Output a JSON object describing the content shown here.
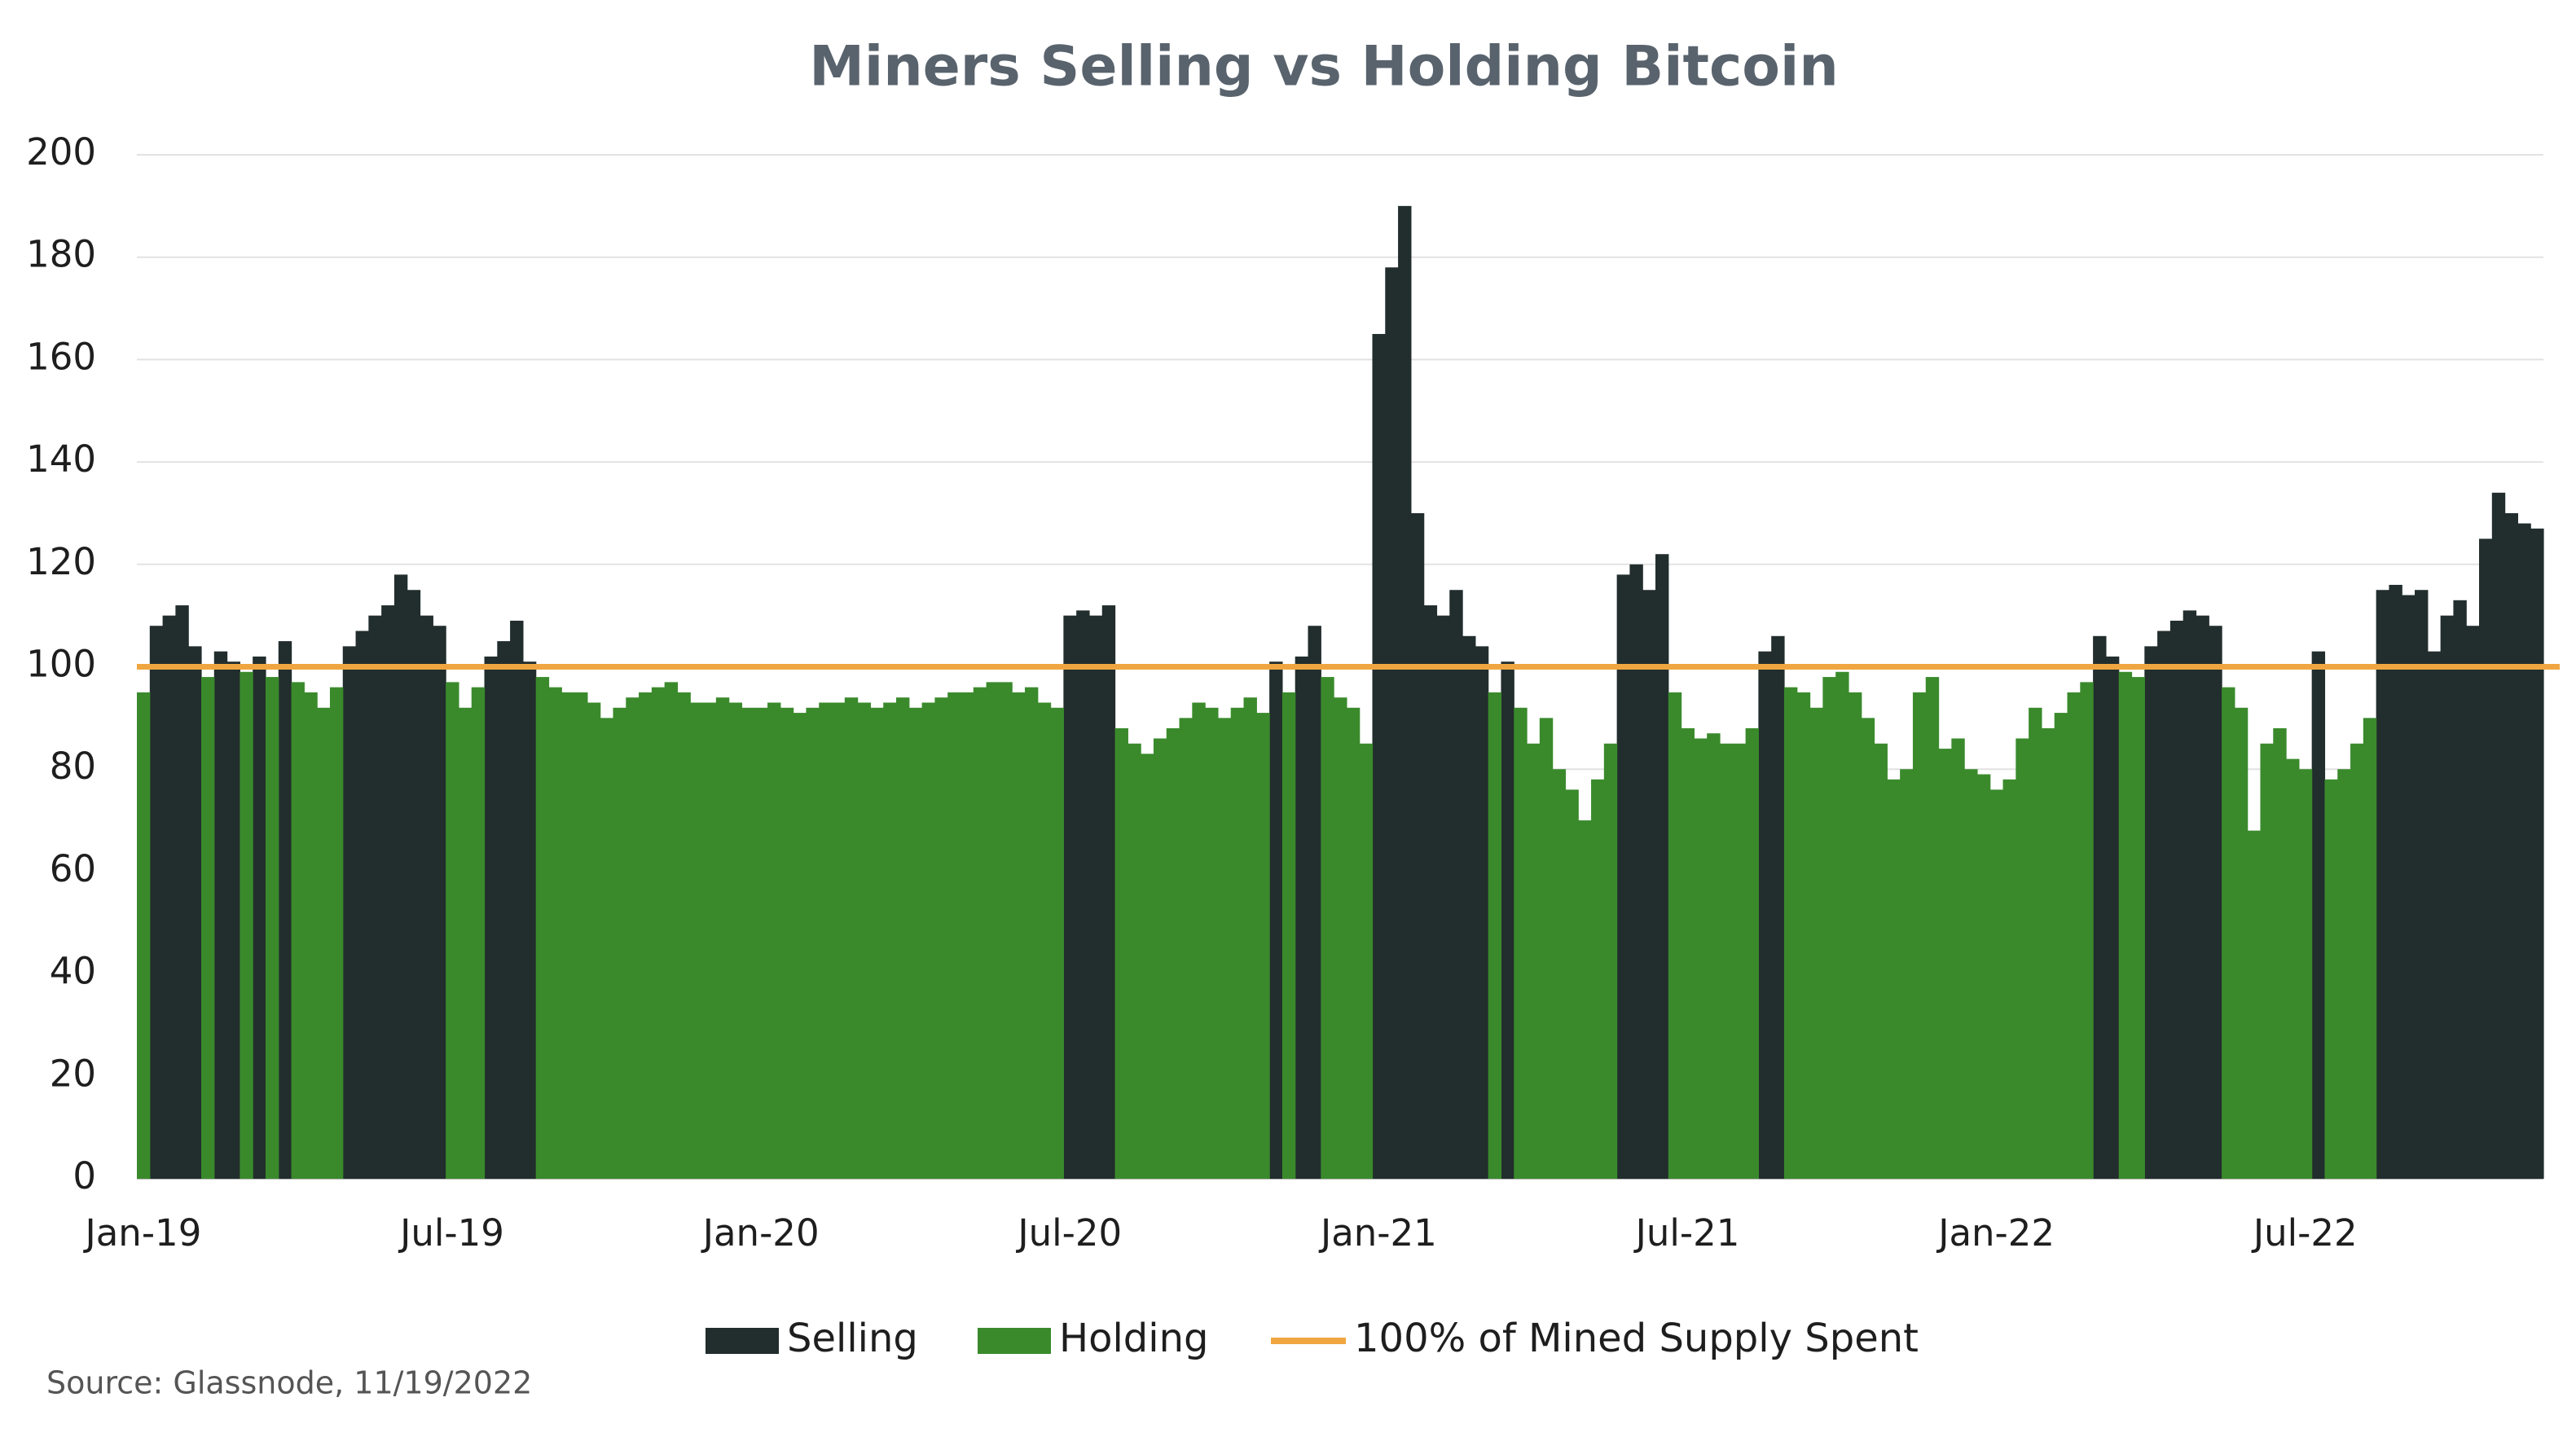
{
  "chart_data": {
    "type": "bar",
    "title": "Miners Selling vs Holding Bitcoin",
    "source": "Source: Glassnode, 11/19/2022",
    "categories": [
      "Jan-19",
      null,
      null,
      null,
      null,
      null,
      null,
      null,
      null,
      null,
      null,
      null,
      null,
      null,
      null,
      null,
      null,
      null,
      null,
      null,
      null,
      null,
      null,
      null,
      "Jul-19",
      null,
      null,
      null,
      null,
      null,
      null,
      null,
      null,
      null,
      null,
      null,
      null,
      null,
      null,
      null,
      null,
      null,
      null,
      null,
      null,
      null,
      null,
      null,
      "Jan-20",
      null,
      null,
      null,
      null,
      null,
      null,
      null,
      null,
      null,
      null,
      null,
      null,
      null,
      null,
      null,
      null,
      null,
      null,
      null,
      null,
      null,
      null,
      null,
      "Jul-20",
      null,
      null,
      null,
      null,
      null,
      null,
      null,
      null,
      null,
      null,
      null,
      null,
      null,
      null,
      null,
      null,
      null,
      null,
      null,
      null,
      null,
      null,
      null,
      "Jan-21",
      null,
      null,
      null,
      null,
      null,
      null,
      null,
      null,
      null,
      null,
      null,
      null,
      null,
      null,
      null,
      null,
      null,
      null,
      null,
      null,
      null,
      null,
      null,
      "Jul-21",
      null,
      null,
      null,
      null,
      null,
      null,
      null,
      null,
      null,
      null,
      null,
      null,
      null,
      null,
      null,
      null,
      null,
      null,
      null,
      null,
      null,
      null,
      null,
      "Jan-22",
      null,
      null,
      null,
      null,
      null,
      null,
      null,
      null,
      null,
      null,
      null,
      null,
      null,
      null,
      null,
      null,
      null,
      null,
      null,
      null,
      null,
      null,
      null,
      "Jul-22",
      null,
      null,
      null,
      null,
      null,
      null,
      null,
      null,
      null,
      null,
      null,
      null,
      null,
      null,
      null,
      null,
      null,
      null
    ],
    "series": [
      {
        "name": "Selling",
        "color": "#222d2d",
        "values": [
          null,
          108,
          110,
          112,
          104,
          null,
          103,
          101,
          null,
          102,
          null,
          105,
          null,
          null,
          null,
          null,
          104,
          107,
          110,
          112,
          118,
          115,
          110,
          108,
          null,
          null,
          null,
          102,
          105,
          109,
          101,
          null,
          null,
          null,
          null,
          null,
          null,
          null,
          null,
          null,
          null,
          null,
          null,
          null,
          null,
          null,
          null,
          null,
          null,
          null,
          null,
          null,
          null,
          null,
          null,
          null,
          null,
          null,
          null,
          null,
          null,
          null,
          null,
          null,
          null,
          null,
          null,
          null,
          null,
          null,
          null,
          null,
          110,
          111,
          110,
          112,
          null,
          null,
          null,
          null,
          null,
          null,
          null,
          null,
          null,
          null,
          null,
          null,
          101,
          null,
          102,
          108,
          null,
          null,
          null,
          null,
          165,
          178,
          190,
          130,
          112,
          110,
          115,
          106,
          104,
          null,
          101,
          null,
          null,
          null,
          null,
          null,
          null,
          null,
          null,
          118,
          120,
          115,
          122,
          null,
          null,
          null,
          null,
          null,
          null,
          null,
          103,
          106,
          null,
          null,
          null,
          null,
          null,
          null,
          null,
          null,
          null,
          null,
          null,
          null,
          null,
          null,
          null,
          null,
          null,
          null,
          null,
          null,
          null,
          null,
          null,
          null,
          106,
          102,
          null,
          null,
          104,
          107,
          109,
          111,
          110,
          108,
          null,
          null,
          null,
          null,
          null,
          null,
          null,
          103,
          null,
          null,
          null,
          null,
          115,
          116,
          114,
          115,
          103,
          110,
          113,
          108,
          125,
          134,
          130,
          128,
          127
        ]
      },
      {
        "name": "Holding",
        "color": "#3a8a2c",
        "values": [
          95,
          null,
          null,
          null,
          null,
          98,
          null,
          null,
          99,
          null,
          98,
          null,
          97,
          95,
          92,
          96,
          null,
          null,
          null,
          null,
          null,
          null,
          null,
          null,
          97,
          92,
          96,
          null,
          null,
          null,
          null,
          98,
          96,
          95,
          95,
          93,
          90,
          92,
          94,
          95,
          96,
          97,
          95,
          93,
          93,
          94,
          93,
          92,
          92,
          93,
          92,
          91,
          92,
          93,
          93,
          94,
          93,
          92,
          93,
          94,
          92,
          93,
          94,
          95,
          95,
          96,
          97,
          97,
          95,
          96,
          93,
          92,
          null,
          null,
          null,
          null,
          88,
          85,
          83,
          86,
          88,
          90,
          93,
          92,
          90,
          92,
          94,
          91,
          null,
          95,
          null,
          null,
          98,
          94,
          92,
          85,
          null,
          null,
          null,
          null,
          null,
          null,
          null,
          null,
          null,
          95,
          null,
          92,
          85,
          90,
          80,
          76,
          70,
          78,
          85,
          null,
          null,
          null,
          null,
          95,
          88,
          86,
          87,
          85,
          85,
          88,
          null,
          null,
          96,
          95,
          92,
          98,
          99,
          95,
          90,
          85,
          78,
          80,
          95,
          98,
          84,
          86,
          80,
          79,
          76,
          78,
          86,
          92,
          88,
          91,
          95,
          97,
          null,
          null,
          99,
          98,
          null,
          null,
          null,
          null,
          null,
          null,
          96,
          92,
          68,
          85,
          88,
          82,
          80,
          null,
          78,
          80,
          85,
          90,
          null,
          null,
          null,
          null,
          null,
          null,
          null,
          null,
          null,
          null,
          null,
          null,
          null
        ]
      }
    ],
    "reference_line": {
      "name": "100% of Mined Supply Spent",
      "value": 100,
      "color": "#f0a640"
    },
    "ylim": [
      0,
      200
    ],
    "yticks": [
      0,
      20,
      40,
      60,
      80,
      100,
      120,
      140,
      160,
      180,
      200
    ],
    "grid": true,
    "legend": "bottom"
  }
}
